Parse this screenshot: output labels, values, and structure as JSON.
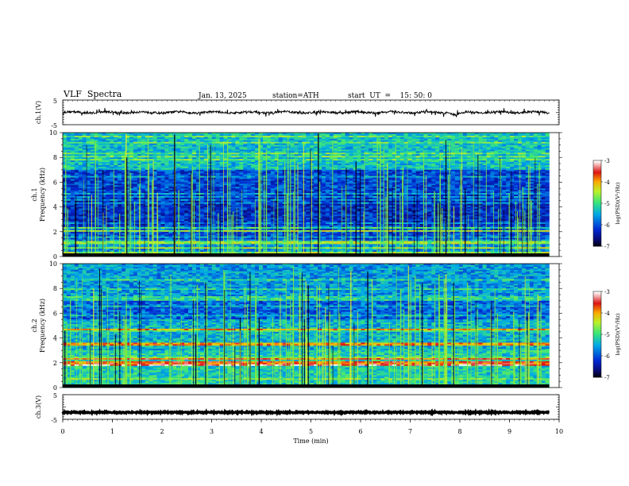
{
  "header": {
    "title": "VLF  Spectra",
    "date": "Jan. 13, 2025",
    "station": "station=ATH",
    "start_ut": "start  UT  =    15: 50: 0"
  },
  "panels": {
    "ch1_label": "ch.1(V)",
    "ch3_label": "ch.3(V)",
    "spec1_label": "ch.1",
    "spec2_label": "ch.2",
    "freq_label": "Frequency  (kHz)",
    "time_label": "Time  (min)",
    "colorbar_label": "log(PSD)(V²/Hz)"
  },
  "chart_data": [
    {
      "type": "line",
      "name": "ch1-waveform",
      "ylabel": "ch.1(V)",
      "ylim": [
        -5,
        5
      ],
      "yticks": [
        "5",
        "-5"
      ],
      "xlim": [
        0,
        10
      ],
      "x_end_min": 9.8,
      "baseline": 0,
      "events": [
        {
          "x": 7.85,
          "dip": -1.0
        }
      ]
    },
    {
      "type": "heatmap",
      "name": "ch1-spectrogram",
      "xlabel": "",
      "ylabel": "Frequency  (kHz)",
      "xlim": [
        0,
        10
      ],
      "ylim": [
        0,
        10
      ],
      "yticks": [
        "0",
        "2",
        "4",
        "6",
        "8",
        "10"
      ],
      "x_end_min": 9.8,
      "colorbar": {
        "label": "log(PSD)(V²/Hz)",
        "range": [
          -7,
          -3
        ],
        "ticks": [
          "-3",
          "-4",
          "-5",
          "-6",
          "-7"
        ]
      },
      "strong_bands_khz": [
        0.3,
        0.7,
        1.1,
        2.05,
        2.3
      ],
      "notes": "broadband impulsive spikes (sferics) across 0-10 kHz"
    },
    {
      "type": "heatmap",
      "name": "ch2-spectrogram",
      "xlabel": "",
      "ylabel": "Frequency  (kHz)",
      "xlim": [
        0,
        10
      ],
      "ylim": [
        0,
        10
      ],
      "yticks": [
        "0",
        "2",
        "4",
        "6",
        "8",
        "10"
      ],
      "x_end_min": 9.8,
      "colorbar": {
        "label": "log(PSD)(V²/Hz)",
        "range": [
          -7,
          -3
        ],
        "ticks": [
          "-3",
          "-4",
          "-5",
          "-6",
          "-7"
        ]
      },
      "strong_bands_khz": [
        1.85,
        2.05,
        2.3,
        3.5,
        4.7
      ],
      "notes": "broadband impulsive spikes (sferics) across 0-10 kHz"
    },
    {
      "type": "line",
      "name": "ch3-waveform",
      "xlabel": "Time  (min)",
      "ylabel": "ch.3(V)",
      "ylim": [
        -5,
        5
      ],
      "yticks": [
        "5",
        "-5"
      ],
      "xlim": [
        0,
        10
      ],
      "xticks": [
        "0",
        "1",
        "2",
        "3",
        "4",
        "5",
        "6",
        "7",
        "8",
        "9",
        "10"
      ],
      "x_end_min": 9.8,
      "baseline": -2.2
    }
  ]
}
